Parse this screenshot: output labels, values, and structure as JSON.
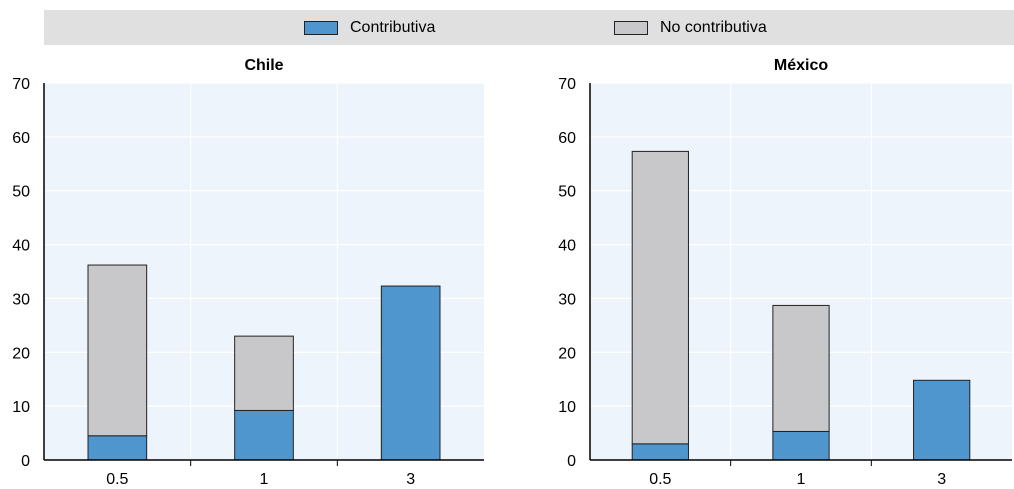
{
  "legend": {
    "items": [
      {
        "label": "Contributiva",
        "color": "#4f96cf"
      },
      {
        "label": "No contributiva",
        "color": "#c8c8ca"
      }
    ]
  },
  "chart_data": [
    {
      "type": "bar",
      "stacked": true,
      "title": "Chile",
      "categories": [
        "0.5",
        "1",
        "3"
      ],
      "series": [
        {
          "name": "Contributiva",
          "values": [
            4.5,
            9.2,
            32.3
          ]
        },
        {
          "name": "No contributiva",
          "values": [
            31.7,
            13.8,
            0
          ]
        }
      ],
      "ylim": [
        0,
        70
      ],
      "yticks": [
        0,
        10,
        20,
        30,
        40,
        50,
        60,
        70
      ],
      "grid": true,
      "legend": "top"
    },
    {
      "type": "bar",
      "stacked": true,
      "title": "México",
      "categories": [
        "0.5",
        "1",
        "3"
      ],
      "series": [
        {
          "name": "Contributiva",
          "values": [
            3.0,
            5.3,
            14.8
          ]
        },
        {
          "name": "No contributiva",
          "values": [
            54.3,
            23.4,
            0
          ]
        }
      ],
      "ylim": [
        0,
        70
      ],
      "yticks": [
        0,
        10,
        20,
        30,
        40,
        50,
        60,
        70
      ],
      "grid": true,
      "legend": "top"
    }
  ]
}
